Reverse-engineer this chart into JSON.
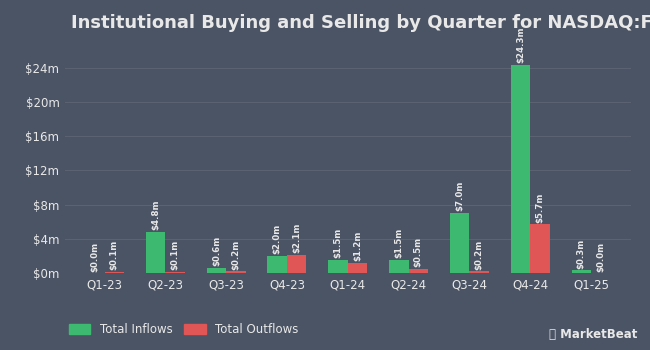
{
  "title": "Institutional Buying and Selling by Quarter for NASDAQ:FFNW",
  "quarters": [
    "Q1-23",
    "Q2-23",
    "Q3-23",
    "Q4-23",
    "Q1-24",
    "Q2-24",
    "Q3-24",
    "Q4-24",
    "Q1-25"
  ],
  "inflows": [
    0.0,
    4.8,
    0.6,
    2.0,
    1.5,
    1.5,
    7.0,
    24.3,
    0.3
  ],
  "outflows": [
    0.1,
    0.1,
    0.2,
    2.1,
    1.2,
    0.5,
    0.2,
    5.7,
    0.0
  ],
  "inflow_labels": [
    "$0.0m",
    "$4.8m",
    "$0.6m",
    "$2.0m",
    "$1.5m",
    "$1.5m",
    "$7.0m",
    "$24.3m",
    "$0.3m"
  ],
  "outflow_labels": [
    "$0.1m",
    "$0.1m",
    "$0.2m",
    "$2.1m",
    "$1.2m",
    "$0.5m",
    "$0.2m",
    "$5.7m",
    "$0.0m"
  ],
  "inflow_color": "#3dba6f",
  "outflow_color": "#e05555",
  "bg_color": "#4b5464",
  "text_color": "#e8e8e8",
  "grid_color": "#5c6474",
  "yticks": [
    0,
    4,
    8,
    12,
    16,
    20,
    24
  ],
  "ytick_labels": [
    "$0m",
    "$4m",
    "$8m",
    "$12m",
    "$16m",
    "$20m",
    "$24m"
  ],
  "ylim": [
    0,
    27
  ],
  "bar_width": 0.32,
  "title_fontsize": 13,
  "label_fontsize": 6.2,
  "tick_fontsize": 8.5,
  "legend_fontsize": 8.5
}
